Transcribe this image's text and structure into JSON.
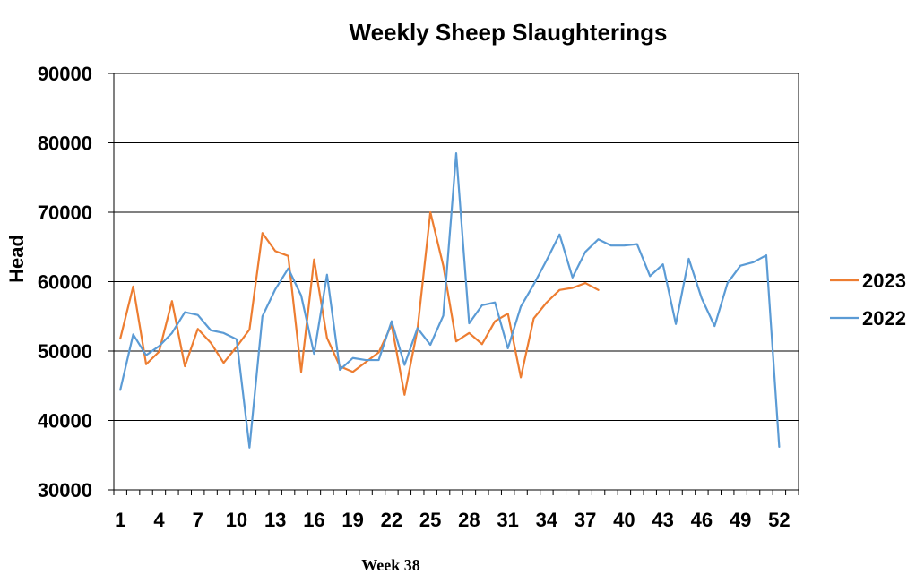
{
  "chart_data": {
    "type": "line",
    "title": "Weekly Sheep Slaughterings",
    "ylabel": "Head",
    "xlabel": "",
    "footnote": "Week 38",
    "ylim": [
      30000,
      90000
    ],
    "yticks": [
      30000,
      40000,
      50000,
      60000,
      70000,
      80000,
      90000
    ],
    "xlim": [
      1,
      52
    ],
    "xticks": [
      1,
      4,
      7,
      10,
      13,
      16,
      19,
      22,
      25,
      28,
      31,
      34,
      37,
      40,
      43,
      46,
      49,
      52
    ],
    "grid": "horizontal",
    "legend_position": "right",
    "series": [
      {
        "name": "2023",
        "color": "#ED7D31",
        "x": [
          1,
          2,
          3,
          4,
          5,
          6,
          7,
          8,
          9,
          10,
          11,
          12,
          13,
          14,
          15,
          16,
          17,
          18,
          19,
          20,
          21,
          22,
          23,
          24,
          25,
          26,
          27,
          28,
          29,
          30,
          31,
          32,
          33,
          34,
          35,
          36,
          37,
          38
        ],
        "values": [
          51800,
          59300,
          48100,
          49900,
          57200,
          47800,
          53200,
          51200,
          48300,
          50600,
          53100,
          67000,
          64400,
          63700,
          47000,
          63200,
          51900,
          47800,
          47000,
          48400,
          49800,
          53800,
          43700,
          53100,
          70000,
          62300,
          51400,
          52600,
          51000,
          54300,
          55400,
          46200,
          54700,
          57000,
          58800,
          59100,
          59800,
          58800
        ]
      },
      {
        "name": "2022",
        "color": "#5B9BD5",
        "x": [
          1,
          2,
          3,
          4,
          5,
          6,
          7,
          8,
          9,
          10,
          11,
          12,
          13,
          14,
          15,
          16,
          17,
          18,
          19,
          20,
          21,
          22,
          23,
          24,
          25,
          26,
          27,
          28,
          29,
          30,
          31,
          32,
          33,
          34,
          35,
          36,
          37,
          38,
          39,
          40,
          41,
          42,
          43,
          44,
          45,
          46,
          47,
          48,
          49,
          50,
          51,
          52
        ],
        "values": [
          44400,
          52400,
          49400,
          50700,
          52600,
          55600,
          55200,
          53000,
          52600,
          51700,
          36100,
          55000,
          58900,
          61900,
          58000,
          49600,
          61000,
          47300,
          49000,
          48700,
          48700,
          54300,
          48000,
          53300,
          50900,
          55100,
          78500,
          54000,
          56600,
          57000,
          50400,
          56400,
          59600,
          63100,
          66800,
          60600,
          64300,
          66100,
          65200,
          65200,
          65400,
          60800,
          62500,
          53900,
          63300,
          57600,
          53600,
          59800,
          62300,
          62800,
          63800,
          36200
        ]
      }
    ]
  }
}
